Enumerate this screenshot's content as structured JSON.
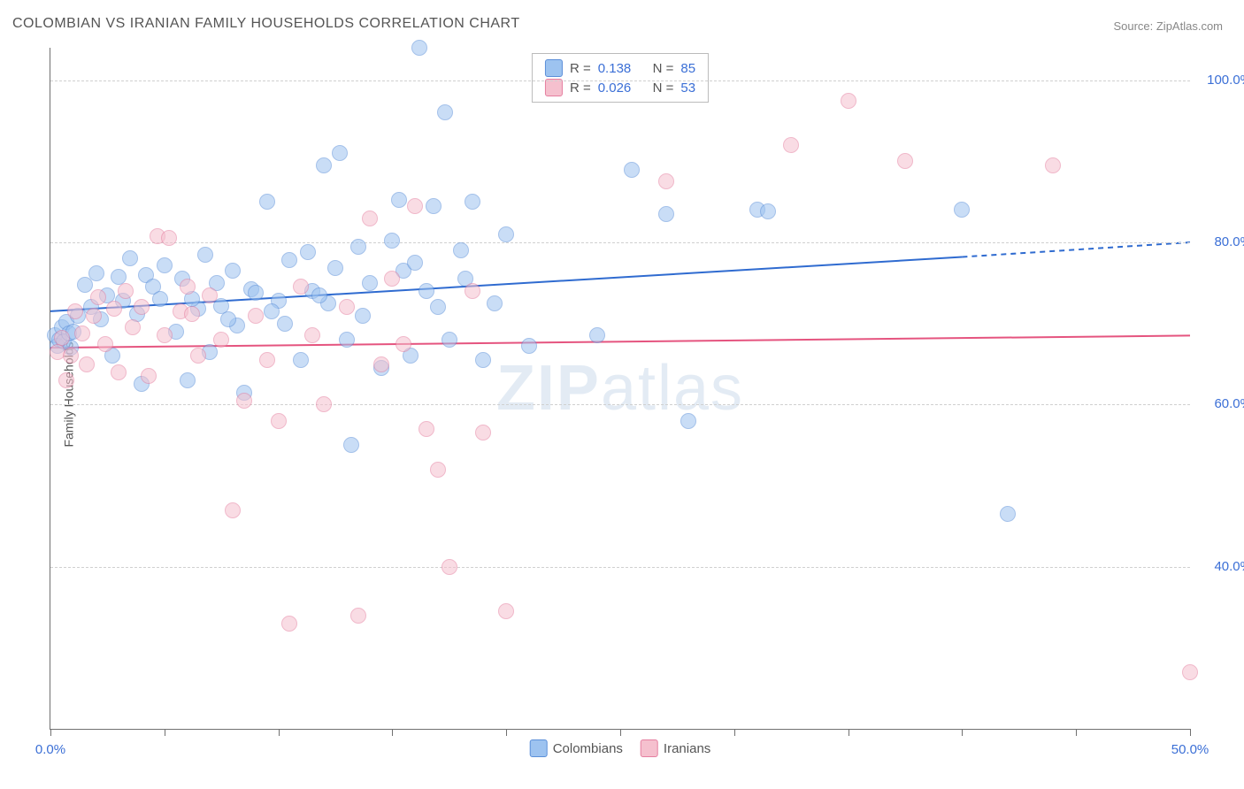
{
  "title": "COLOMBIAN VS IRANIAN FAMILY HOUSEHOLDS CORRELATION CHART",
  "source_label": "Source: ZipAtlas.com",
  "y_axis_label": "Family Households",
  "watermark": {
    "part1": "ZIP",
    "part2": "atlas"
  },
  "chart": {
    "type": "scatter",
    "xlim": [
      0,
      50
    ],
    "ylim": [
      20,
      104
    ],
    "x_ticks": [
      0,
      5,
      10,
      15,
      20,
      25,
      30,
      35,
      40,
      45,
      50
    ],
    "x_tick_labels_shown": {
      "0": "0.0%",
      "50": "50.0%"
    },
    "y_gridlines": [
      40,
      60,
      80,
      100
    ],
    "y_tick_labels": {
      "40": "40.0%",
      "60": "60.0%",
      "80": "80.0%",
      "100": "100.0%"
    },
    "background_color": "#ffffff",
    "grid_color": "#d0d0d0",
    "axis_color": "#707070",
    "label_fontsize": 14,
    "tick_label_color": "#3b6fd6",
    "marker_radius": 8,
    "marker_opacity": 0.55,
    "series": [
      {
        "name": "Colombians",
        "fill_color": "#9dc3f0",
        "stroke_color": "#5b8fd9",
        "R": 0.138,
        "N": 85,
        "trend": {
          "color": "#2f6bd0",
          "width": 2,
          "y_start": 71.5,
          "y_end_solid_x": 40,
          "y_end_solid": 78.2,
          "y_end": 80.0
        },
        "points": [
          [
            0.2,
            68.5
          ],
          [
            0.3,
            67.2
          ],
          [
            0.4,
            68.0
          ],
          [
            0.5,
            69.5
          ],
          [
            0.6,
            67.8
          ],
          [
            0.7,
            70.2
          ],
          [
            0.8,
            68.8
          ],
          [
            0.9,
            67.0
          ],
          [
            1.0,
            69.0
          ],
          [
            1.2,
            71.0
          ],
          [
            1.5,
            74.8
          ],
          [
            1.8,
            72.0
          ],
          [
            2.0,
            76.2
          ],
          [
            2.2,
            70.5
          ],
          [
            2.5,
            73.5
          ],
          [
            2.7,
            66.0
          ],
          [
            3.0,
            75.8
          ],
          [
            3.2,
            72.8
          ],
          [
            3.5,
            78.0
          ],
          [
            3.8,
            71.2
          ],
          [
            4.0,
            62.5
          ],
          [
            4.2,
            76.0
          ],
          [
            4.5,
            74.5
          ],
          [
            4.8,
            73.0
          ],
          [
            5.0,
            77.2
          ],
          [
            5.5,
            69.0
          ],
          [
            5.8,
            75.5
          ],
          [
            6.0,
            63.0
          ],
          [
            6.5,
            71.8
          ],
          [
            6.8,
            78.5
          ],
          [
            7.0,
            66.5
          ],
          [
            7.3,
            75.0
          ],
          [
            7.5,
            72.2
          ],
          [
            8.0,
            76.5
          ],
          [
            8.2,
            69.8
          ],
          [
            8.5,
            61.5
          ],
          [
            8.8,
            74.2
          ],
          [
            9.0,
            73.8
          ],
          [
            9.5,
            85.0
          ],
          [
            10.0,
            72.8
          ],
          [
            10.3,
            70.0
          ],
          [
            10.5,
            77.8
          ],
          [
            11.0,
            65.5
          ],
          [
            11.3,
            78.8
          ],
          [
            11.5,
            74.0
          ],
          [
            12.0,
            89.5
          ],
          [
            12.2,
            72.5
          ],
          [
            12.5,
            76.8
          ],
          [
            12.7,
            91.0
          ],
          [
            13.0,
            68.0
          ],
          [
            13.2,
            55.0
          ],
          [
            13.5,
            79.5
          ],
          [
            14.0,
            75.0
          ],
          [
            14.5,
            64.5
          ],
          [
            15.0,
            80.2
          ],
          [
            15.3,
            85.2
          ],
          [
            15.5,
            76.5
          ],
          [
            15.8,
            66.0
          ],
          [
            16.0,
            77.5
          ],
          [
            16.2,
            104.0
          ],
          [
            16.5,
            74.0
          ],
          [
            16.8,
            84.5
          ],
          [
            17.0,
            72.0
          ],
          [
            17.3,
            96.0
          ],
          [
            17.5,
            68.0
          ],
          [
            18.0,
            79.0
          ],
          [
            18.2,
            75.5
          ],
          [
            18.5,
            85.0
          ],
          [
            19.0,
            65.5
          ],
          [
            19.5,
            72.5
          ],
          [
            20.0,
            81.0
          ],
          [
            21.0,
            67.2
          ],
          [
            24.0,
            68.5
          ],
          [
            25.5,
            89.0
          ],
          [
            27.0,
            83.5
          ],
          [
            28.0,
            58.0
          ],
          [
            31.0,
            84.0
          ],
          [
            31.5,
            83.8
          ],
          [
            40.0,
            84.0
          ],
          [
            42.0,
            46.5
          ],
          [
            6.2,
            73.0
          ],
          [
            7.8,
            70.5
          ],
          [
            9.7,
            71.5
          ],
          [
            11.8,
            73.5
          ],
          [
            13.7,
            71.0
          ]
        ]
      },
      {
        "name": "Iranians",
        "fill_color": "#f5c0ce",
        "stroke_color": "#e57fa0",
        "R": 0.026,
        "N": 53,
        "trend": {
          "color": "#e5547f",
          "width": 2,
          "y_start": 67.0,
          "y_end": 68.5
        },
        "points": [
          [
            0.3,
            66.5
          ],
          [
            0.5,
            68.2
          ],
          [
            0.7,
            63.0
          ],
          [
            0.9,
            66.0
          ],
          [
            1.1,
            71.5
          ],
          [
            1.4,
            68.8
          ],
          [
            1.6,
            65.0
          ],
          [
            1.9,
            71.0
          ],
          [
            2.1,
            73.2
          ],
          [
            2.4,
            67.5
          ],
          [
            2.8,
            71.8
          ],
          [
            3.0,
            64.0
          ],
          [
            3.3,
            74.0
          ],
          [
            3.6,
            69.5
          ],
          [
            4.0,
            72.0
          ],
          [
            4.3,
            63.5
          ],
          [
            4.7,
            80.8
          ],
          [
            5.0,
            68.5
          ],
          [
            5.2,
            80.5
          ],
          [
            5.7,
            71.5
          ],
          [
            6.0,
            74.5
          ],
          [
            6.5,
            66.0
          ],
          [
            7.0,
            73.5
          ],
          [
            7.5,
            68.0
          ],
          [
            8.0,
            47.0
          ],
          [
            8.5,
            60.5
          ],
          [
            9.0,
            71.0
          ],
          [
            9.5,
            65.5
          ],
          [
            10.0,
            58.0
          ],
          [
            10.5,
            33.0
          ],
          [
            11.0,
            74.5
          ],
          [
            11.5,
            68.5
          ],
          [
            12.0,
            60.0
          ],
          [
            13.0,
            72.0
          ],
          [
            13.5,
            34.0
          ],
          [
            14.0,
            83.0
          ],
          [
            14.5,
            65.0
          ],
          [
            15.0,
            75.5
          ],
          [
            15.5,
            67.5
          ],
          [
            16.0,
            84.5
          ],
          [
            16.5,
            57.0
          ],
          [
            17.0,
            52.0
          ],
          [
            17.5,
            40.0
          ],
          [
            18.5,
            74.0
          ],
          [
            19.0,
            56.5
          ],
          [
            20.0,
            34.5
          ],
          [
            27.0,
            87.5
          ],
          [
            32.5,
            92.0
          ],
          [
            35.0,
            97.5
          ],
          [
            37.5,
            90.0
          ],
          [
            44.0,
            89.5
          ],
          [
            50.0,
            27.0
          ],
          [
            6.2,
            71.2
          ]
        ]
      }
    ]
  },
  "legend_bottom": [
    {
      "label": "Colombians",
      "fill": "#9dc3f0",
      "stroke": "#5b8fd9"
    },
    {
      "label": "Iranians",
      "fill": "#f5c0ce",
      "stroke": "#e57fa0"
    }
  ]
}
